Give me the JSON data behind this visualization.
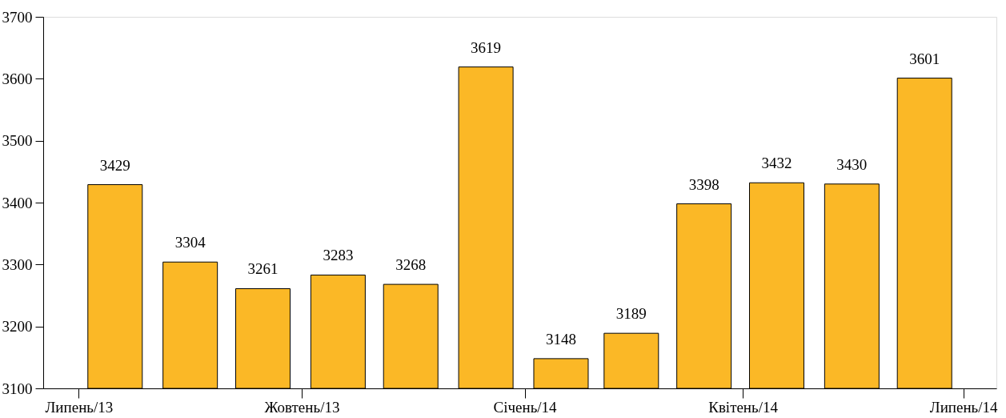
{
  "chart_data": {
    "type": "bar",
    "x": [
      "2013-07-16",
      "2013-08-16",
      "2013-09-15",
      "2013-10-16",
      "2013-11-15",
      "2013-12-16",
      "2014-01-16",
      "2014-02-14",
      "2014-03-16",
      "2014-04-15",
      "2014-05-16",
      "2014-06-15"
    ],
    "values": [
      3429,
      3304,
      3261,
      3283,
      3268,
      3619,
      3148,
      3189,
      3398,
      3432,
      3430,
      3601
    ],
    "color": "#fbb826",
    "data_labels": true,
    "ylim": [
      3100,
      3700
    ],
    "yticks": [
      3100,
      3200,
      3300,
      3400,
      3500,
      3600,
      3700
    ],
    "xlim": [
      "2013-06-18",
      "2014-07-13"
    ],
    "xticks": [
      {
        "value": "2013-07",
        "label": "Липень/13"
      },
      {
        "value": "2013-10",
        "label": "Жовтень/13"
      },
      {
        "value": "2014-01",
        "label": "Січень/14"
      },
      {
        "value": "2014-04",
        "label": "Квітень/14"
      },
      {
        "value": "2014-07",
        "label": "Липень/14"
      }
    ],
    "grid": false
  }
}
